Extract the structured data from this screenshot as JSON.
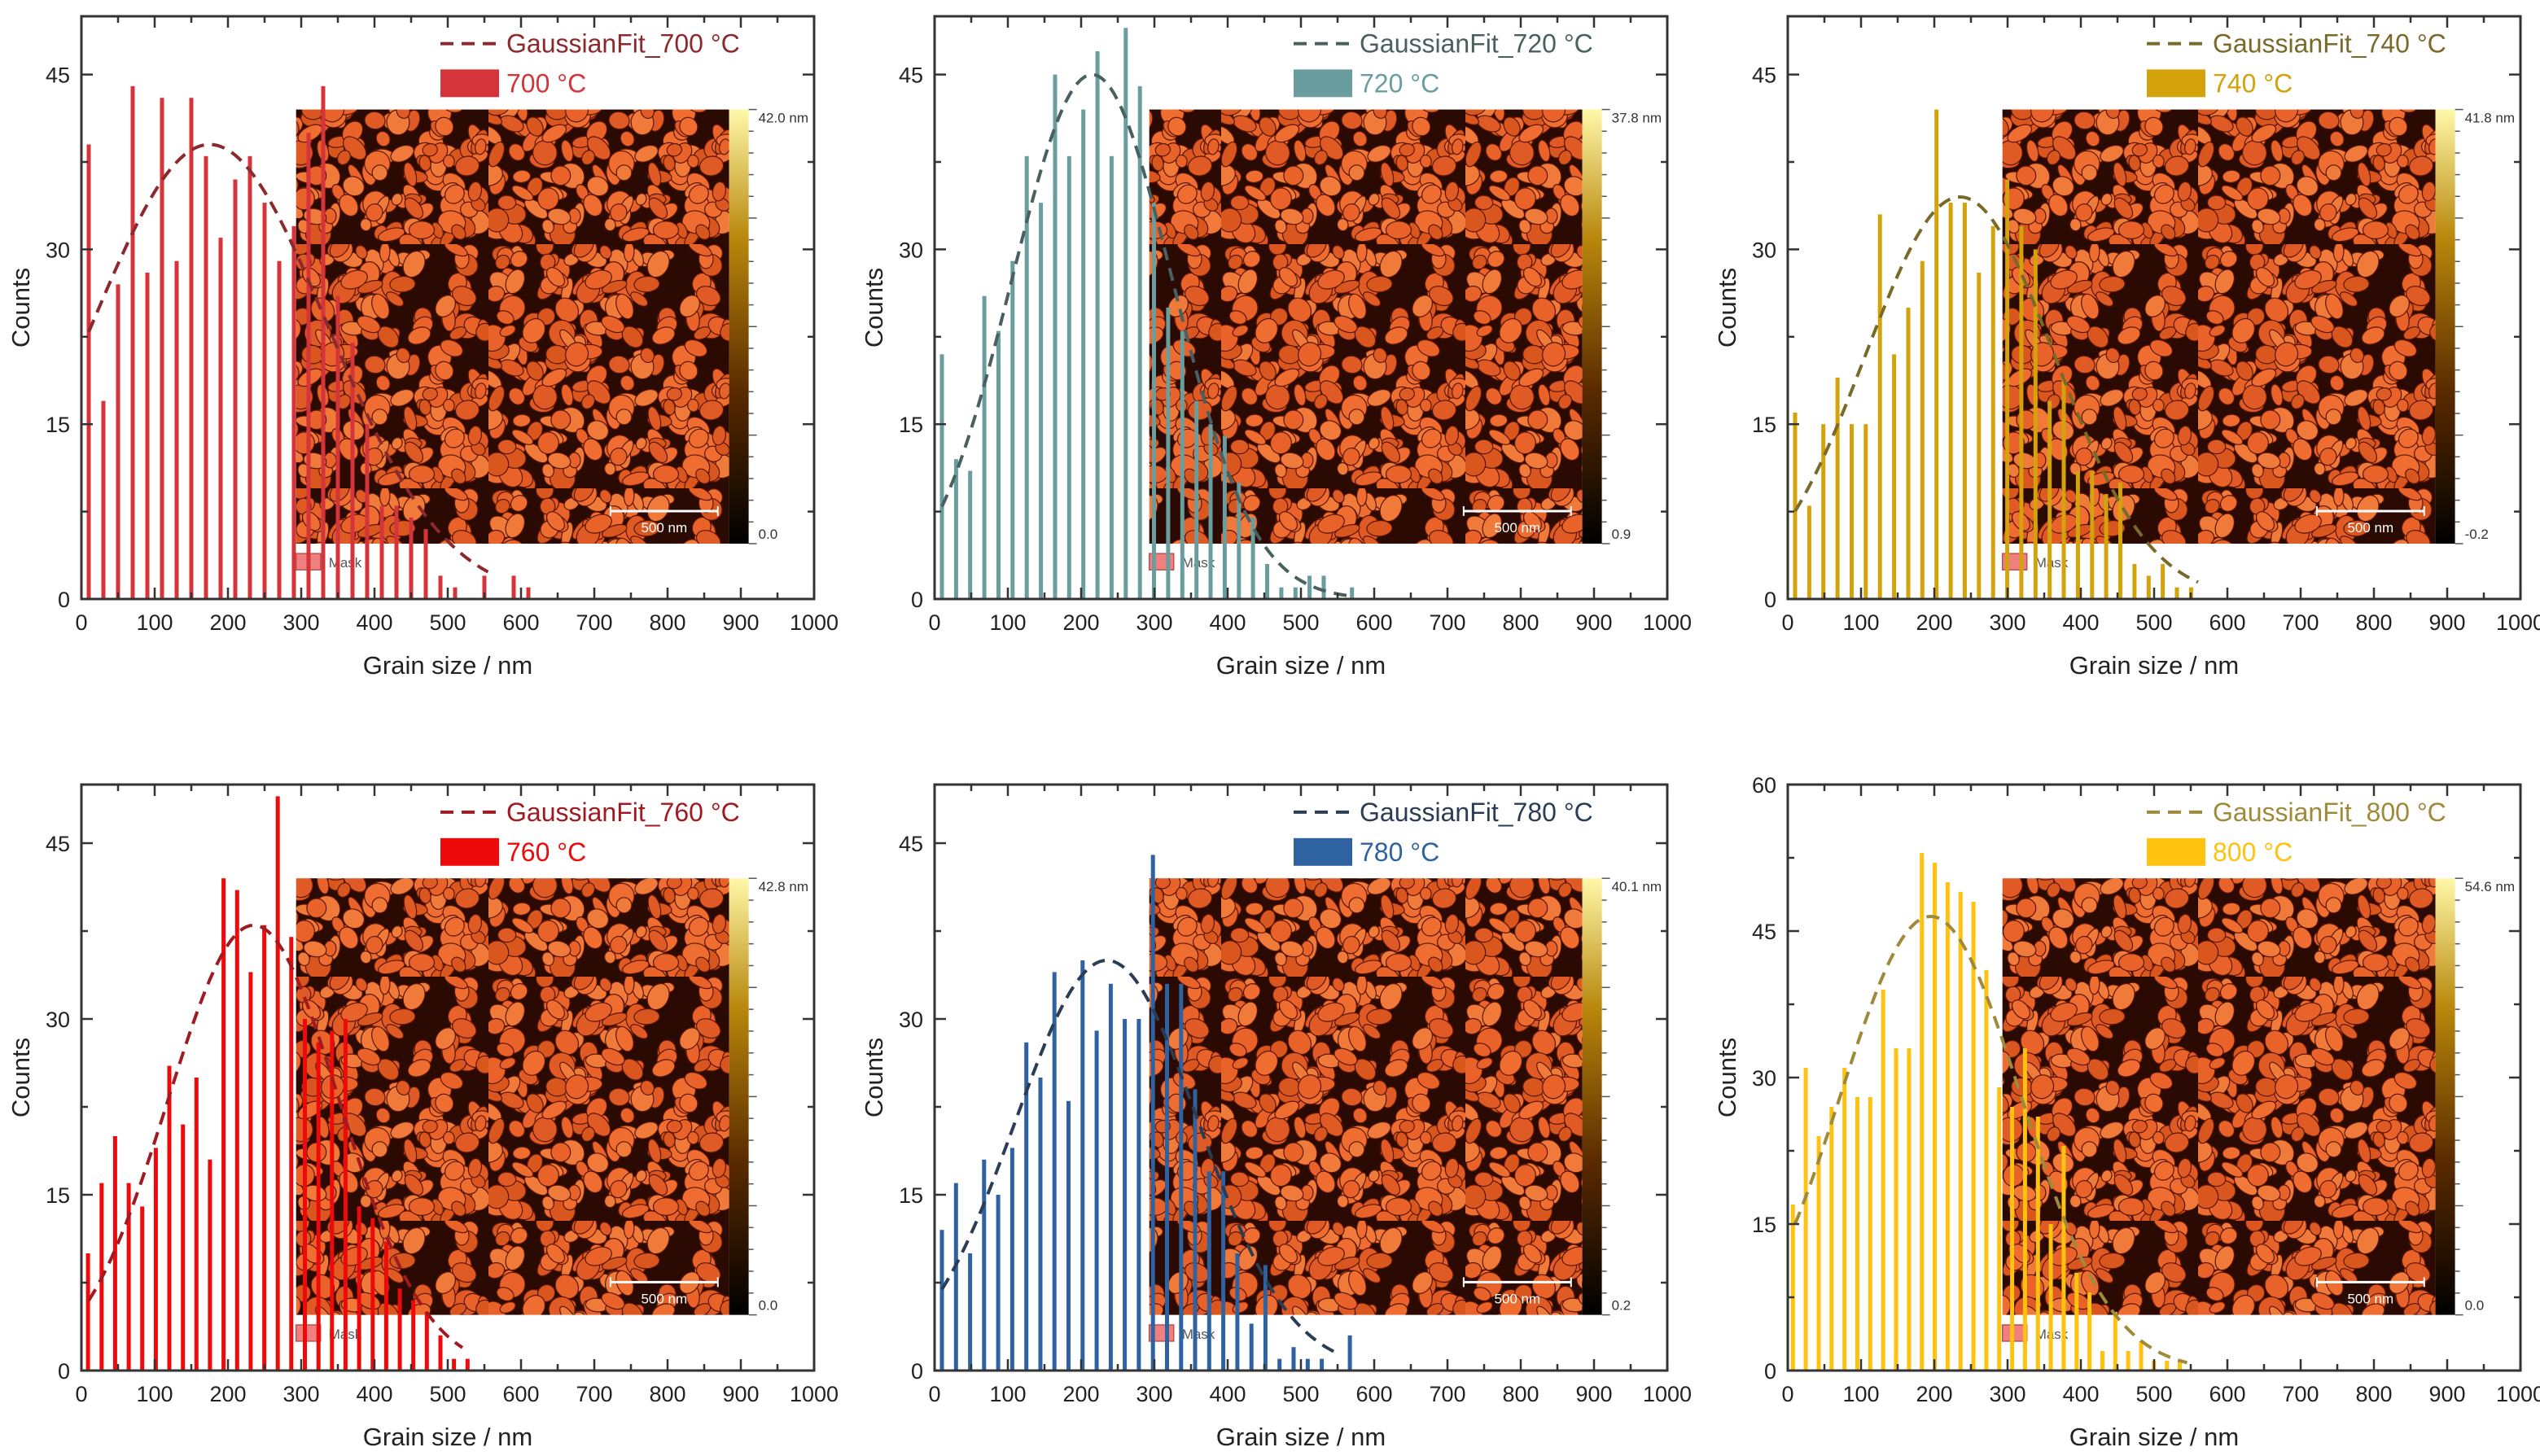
{
  "chart_data": [
    {
      "type": "bar",
      "series_label": "700 °C",
      "fit_label": "GaussianFit_700 °C",
      "xlabel": "Grain size / nm",
      "ylabel": "Counts",
      "xlim": [
        0,
        1000
      ],
      "ylim": [
        0,
        50
      ],
      "xticks": [
        0,
        100,
        200,
        300,
        400,
        500,
        600,
        700,
        800,
        900,
        1000
      ],
      "yticks": [
        0,
        15,
        30,
        45
      ],
      "bin_start": 10,
      "bin_width": 20,
      "values": [
        39,
        17,
        27,
        44,
        28,
        43,
        29,
        43,
        38,
        31,
        36,
        38,
        34,
        29,
        32,
        40,
        44,
        26,
        22,
        15,
        8,
        8,
        7,
        6,
        2,
        1,
        0,
        2,
        0,
        2,
        1
      ],
      "fit": {
        "center": 175,
        "amplitude": 39,
        "sigma": 160,
        "x_range": [
          10,
          555
        ]
      },
      "bar_color": "#d4343a",
      "fit_color": "#8b2a2e",
      "inset": {
        "colorbar_max": "42.0 nm",
        "colorbar_min": "0.0",
        "scale_bar": "500 nm",
        "mask_label": "Mask"
      }
    },
    {
      "type": "bar",
      "series_label": "720 °C",
      "fit_label": "GaussianFit_720 °C",
      "xlabel": "Grain size / nm",
      "ylabel": "Counts",
      "xlim": [
        0,
        1000
      ],
      "ylim": [
        0,
        50
      ],
      "xticks": [
        0,
        100,
        200,
        300,
        400,
        500,
        600,
        700,
        800,
        900,
        1000
      ],
      "yticks": [
        0,
        15,
        30,
        45
      ],
      "bin_start": 10,
      "bin_width": 19.3,
      "values": [
        21,
        12,
        11,
        26,
        23,
        29,
        38,
        34,
        45,
        38,
        42,
        47,
        38,
        49,
        44,
        34,
        25,
        23,
        17,
        15,
        14,
        10,
        7,
        3,
        1,
        1,
        2,
        2,
        0,
        1
      ],
      "fit": {
        "center": 215,
        "amplitude": 45,
        "sigma": 110,
        "x_range": [
          10,
          570
        ]
      },
      "bar_color": "#6a9d9e",
      "fit_color": "#4a5f5f",
      "inset": {
        "colorbar_max": "37.8 nm",
        "colorbar_min": "0.9",
        "scale_bar": "500 nm",
        "mask_label": "Mask"
      }
    },
    {
      "type": "bar",
      "series_label": "740 °C",
      "fit_label": "GaussianFit_740 °C",
      "xlabel": "Grain size / nm",
      "ylabel": "Counts",
      "xlim": [
        0,
        1000
      ],
      "ylim": [
        0,
        50
      ],
      "xticks": [
        0,
        100,
        200,
        300,
        400,
        500,
        600,
        700,
        800,
        900,
        1000
      ],
      "yticks": [
        0,
        15,
        30,
        45
      ],
      "bin_start": 10,
      "bin_width": 19.3,
      "values": [
        16,
        8,
        15,
        19,
        15,
        15,
        33,
        21,
        25,
        29,
        42,
        34,
        34,
        28,
        32,
        36,
        32,
        30,
        17,
        19,
        11,
        11,
        9,
        10,
        3,
        2,
        3,
        1,
        1
      ],
      "fit": {
        "center": 235,
        "amplitude": 34.5,
        "sigma": 129,
        "x_range": [
          10,
          560
        ]
      },
      "bar_color": "#d4a20a",
      "fit_color": "#7a6a2a",
      "inset": {
        "colorbar_max": "41.8 nm",
        "colorbar_min": "-0.2",
        "scale_bar": "500 nm",
        "mask_label": "Mask"
      }
    },
    {
      "type": "bar",
      "series_label": "760 °C",
      "fit_label": "GaussianFit_760 °C",
      "xlabel": "Grain size / nm",
      "ylabel": "Counts",
      "xlim": [
        0,
        1000
      ],
      "ylim": [
        0,
        50
      ],
      "xticks": [
        0,
        100,
        200,
        300,
        400,
        500,
        600,
        700,
        800,
        900,
        1000
      ],
      "yticks": [
        0,
        15,
        30,
        45
      ],
      "bin_start": 9,
      "bin_width": 18.5,
      "values": [
        10,
        16,
        20,
        16,
        14,
        19,
        26,
        21,
        25,
        18,
        42,
        41,
        34,
        38,
        49,
        37,
        30,
        28,
        29,
        30,
        14,
        13,
        11,
        7,
        6,
        5,
        3,
        1,
        1
      ],
      "fit": {
        "center": 235,
        "amplitude": 38,
        "sigma": 117,
        "x_range": [
          10,
          520
        ]
      },
      "bar_color": "#ee0a0a",
      "fit_color": "#a01a22",
      "inset": {
        "colorbar_max": "42.8 nm",
        "colorbar_min": "0.0",
        "scale_bar": "500 nm",
        "mask_label": "Mask"
      }
    },
    {
      "type": "bar",
      "series_label": "780 °C",
      "fit_label": "GaussianFit_780 °C",
      "xlabel": "Grain size / nm",
      "ylabel": "Counts",
      "xlim": [
        0,
        1000
      ],
      "ylim": [
        0,
        50
      ],
      "xticks": [
        0,
        100,
        200,
        300,
        400,
        500,
        600,
        700,
        800,
        900,
        1000
      ],
      "yticks": [
        0,
        15,
        30,
        45
      ],
      "bin_start": 10,
      "bin_width": 19.2,
      "values": [
        12,
        16,
        10,
        18,
        15,
        19,
        28,
        25,
        34,
        23,
        35,
        29,
        33,
        30,
        30,
        44,
        33,
        33,
        24,
        17,
        17,
        10,
        4,
        9,
        1,
        2,
        1,
        1,
        0,
        3
      ],
      "fit": {
        "center": 235,
        "amplitude": 35,
        "sigma": 125,
        "x_range": [
          10,
          550
        ]
      },
      "bar_color": "#2f62a0",
      "fit_color": "#2a3d55",
      "inset": {
        "colorbar_max": "40.1 nm",
        "colorbar_min": "0.2",
        "scale_bar": "500 nm",
        "mask_label": "Mask"
      }
    },
    {
      "type": "bar",
      "series_label": "800 °C",
      "fit_label": "GaussianFit_800 °C",
      "xlabel": "Grain size / nm",
      "ylabel": "Counts",
      "xlim": [
        0,
        1000
      ],
      "ylim": [
        0,
        60
      ],
      "xticks": [
        0,
        100,
        200,
        300,
        400,
        500,
        600,
        700,
        800,
        900,
        1000
      ],
      "yticks": [
        0,
        15,
        30,
        45,
        60
      ],
      "bin_start": 7,
      "bin_width": 17.6,
      "values": [
        17,
        31,
        24,
        27,
        31,
        28,
        28,
        39,
        33,
        33,
        53,
        52,
        50,
        49,
        48,
        41,
        29,
        27,
        33,
        26,
        15,
        23,
        10,
        8,
        2,
        6,
        2,
        3,
        1,
        1,
        1
      ],
      "fit": {
        "center": 195,
        "amplitude": 46.5,
        "sigma": 123,
        "x_range": [
          10,
          545
        ]
      },
      "bar_color": "#ffc20e",
      "fit_color": "#9e8a3a",
      "inset": {
        "colorbar_max": "54.6 nm",
        "colorbar_min": "0.0",
        "scale_bar": "500 nm",
        "mask_label": "Mask"
      }
    }
  ]
}
